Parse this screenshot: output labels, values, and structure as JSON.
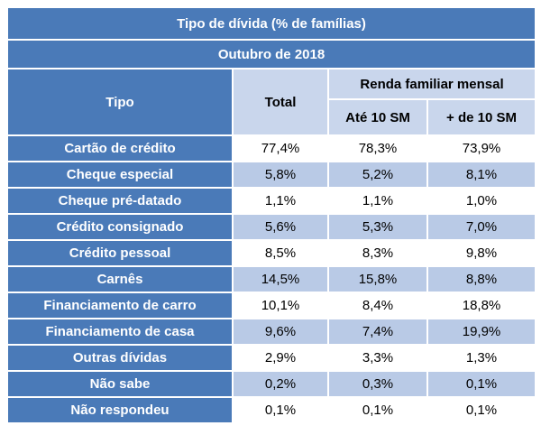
{
  "title": "Tipo de dívida (% de famílias)",
  "period": "Outubro de 2018",
  "headers": {
    "tipo": "Tipo",
    "total": "Total",
    "renda": "Renda familiar mensal",
    "ate10": "Até 10 SM",
    "mais10": "+ de 10 SM"
  },
  "rows": [
    {
      "tipo": "Cartão de crédito",
      "total": "77,4%",
      "ate10": "78,3%",
      "mais10": "73,9%"
    },
    {
      "tipo": "Cheque especial",
      "total": "5,8%",
      "ate10": "5,2%",
      "mais10": "8,1%"
    },
    {
      "tipo": "Cheque pré-datado",
      "total": "1,1%",
      "ate10": "1,1%",
      "mais10": "1,0%"
    },
    {
      "tipo": "Crédito consignado",
      "total": "5,6%",
      "ate10": "5,3%",
      "mais10": "7,0%"
    },
    {
      "tipo": "Crédito pessoal",
      "total": "8,5%",
      "ate10": "8,3%",
      "mais10": "9,8%"
    },
    {
      "tipo": "Carnês",
      "total": "14,5%",
      "ate10": "15,8%",
      "mais10": "8,8%"
    },
    {
      "tipo": "Financiamento de carro",
      "total": "10,1%",
      "ate10": "8,4%",
      "mais10": "18,8%"
    },
    {
      "tipo": "Financiamento de casa",
      "total": "9,6%",
      "ate10": "7,4%",
      "mais10": "19,9%"
    },
    {
      "tipo": "Outras dívidas",
      "total": "2,9%",
      "ate10": "3,3%",
      "mais10": "1,3%"
    },
    {
      "tipo": "Não sabe",
      "total": "0,2%",
      "ate10": "0,3%",
      "mais10": "0,1%"
    },
    {
      "tipo": "Não respondeu",
      "total": "0,1%",
      "ate10": "0,1%",
      "mais10": "0,1%"
    }
  ]
}
